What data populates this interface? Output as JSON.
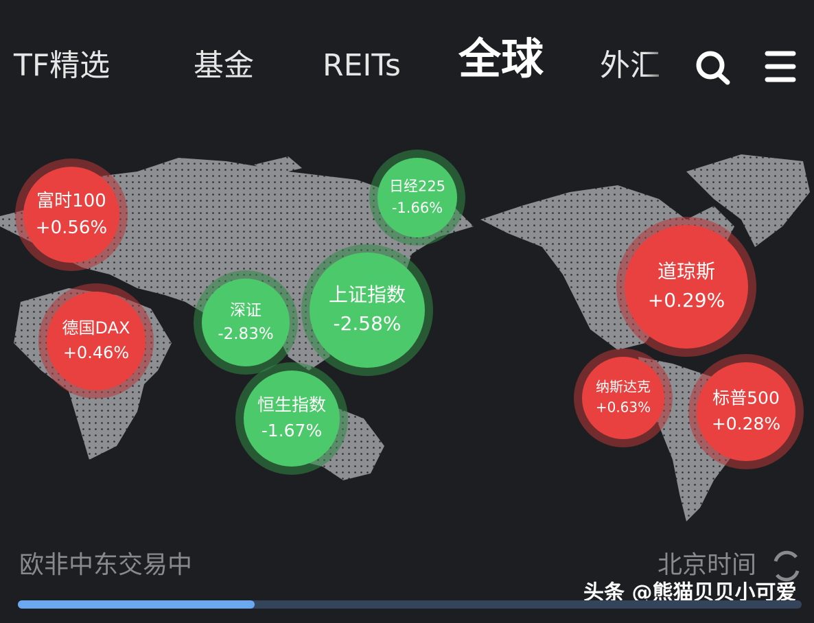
{
  "tabs": [
    "TF精选",
    "基金",
    "REITs",
    "全球",
    "外汇"
  ],
  "indices": [
    {
      "name": "富时100",
      "change": "+0.56%"
    },
    {
      "name": "德国DAX",
      "change": "+0.46%"
    },
    {
      "name": "日经225",
      "change": "-1.66%"
    },
    {
      "name": "深证",
      "change": "-2.83%"
    },
    {
      "name": "上证指数",
      "change": "-2.58%"
    },
    {
      "name": "恒生指数",
      "change": "-1.67%"
    },
    {
      "name": "道琼斯",
      "change": "+0.29%"
    },
    {
      "name": "纳斯达克",
      "change": "+0.63%"
    },
    {
      "name": "标普500",
      "change": "+0.28%"
    }
  ],
  "footer": {
    "status": "欧非中东交易中",
    "time_label": "北京时间"
  },
  "watermark": "头条 @熊猫贝贝小可爱"
}
